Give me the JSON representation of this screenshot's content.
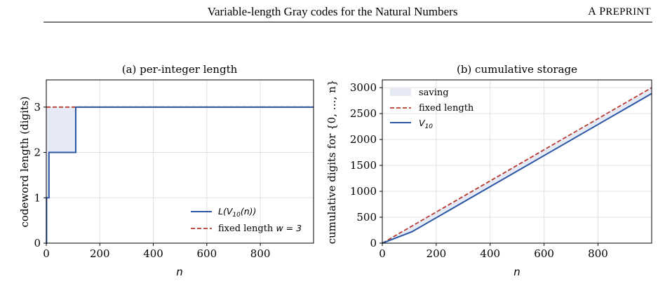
{
  "header": {
    "title": "Variable-length Gray codes for the Natural Numbers",
    "right_first": "A",
    "right_rest_big": "P",
    "right_rest_small": "REPRINT"
  },
  "colors": {
    "series": "#2a56a3",
    "fixed": "#b83a2e",
    "saving_fill": "#e6eaf5",
    "grid": "#e0e0e0"
  },
  "chart_data": [
    {
      "type": "line",
      "title": "(a) per-integer length",
      "xlabel": "n",
      "ylabel": "codeword length (digits)",
      "xlim": [
        0,
        999
      ],
      "ylim": [
        0,
        3.6
      ],
      "xticks": [
        0,
        200,
        400,
        600,
        800
      ],
      "yticks": [
        0,
        1,
        2,
        3
      ],
      "grid": true,
      "legend_position": "lower-right",
      "series": [
        {
          "name": "L(V10(n))",
          "legend_math": "L(V",
          "legend_sub": "10",
          "legend_tail": "(n))",
          "style": "step",
          "x": [
            0,
            1,
            10,
            110,
            999
          ],
          "y": [
            0,
            1,
            2,
            3,
            3
          ]
        },
        {
          "name": "fixed length w = 3",
          "legend_text": "fixed length ",
          "legend_math": "w = 3",
          "style": "dashed",
          "x": [
            0,
            999
          ],
          "y": [
            3,
            3
          ]
        }
      ],
      "fill_between": "saving"
    },
    {
      "type": "line",
      "title": "(b) cumulative storage",
      "xlabel": "n",
      "ylabel": "cumulative digits for {0, …, n}",
      "xlim": [
        0,
        999
      ],
      "ylim": [
        0,
        3150
      ],
      "xticks": [
        0,
        200,
        400,
        600,
        800
      ],
      "yticks": [
        0,
        500,
        1000,
        1500,
        2000,
        2500,
        3000
      ],
      "grid": true,
      "legend_position": "upper-left",
      "legend_saving": "saving",
      "series": [
        {
          "name": "fixed length",
          "style": "dashed",
          "x": [
            0,
            999
          ],
          "y": [
            0,
            3000
          ]
        },
        {
          "name": "V10",
          "legend_math": "V",
          "legend_sub": "10",
          "style": "solid",
          "x": [
            0,
            10,
            110,
            999
          ],
          "y": [
            0,
            19,
            220,
            2887
          ]
        }
      ]
    }
  ]
}
